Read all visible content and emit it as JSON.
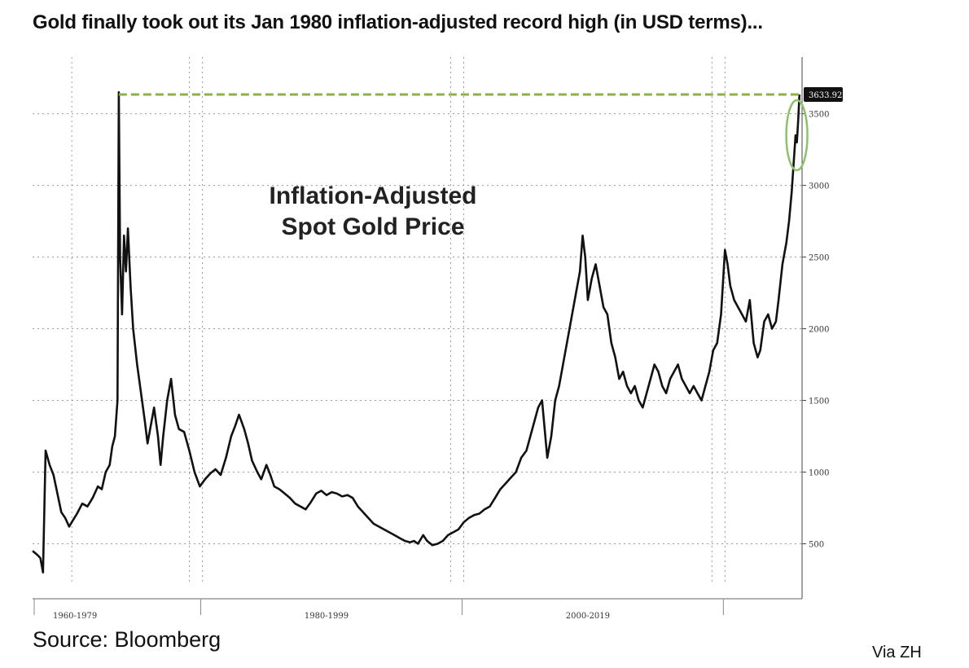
{
  "headline": "Gold finally took out its Jan 1980 inflation-adjusted record high (in USD terms)...",
  "source": "Source: Bloomberg",
  "credit": "Via ZH",
  "chart_data": {
    "type": "line",
    "title": "Inflation-Adjusted Spot Gold Price",
    "annotation_lines": [
      "Inflation-Adjusted",
      "Spot Gold Price"
    ],
    "xlim": [
      1967,
      2025.9
    ],
    "ylim": [
      230,
      3850
    ],
    "y_ticks": [
      500,
      1000,
      1500,
      2000,
      2500,
      3000,
      3500
    ],
    "x_ticks": [
      1970,
      1979,
      1980,
      1999,
      2000,
      2019,
      2020
    ],
    "x_group_labels": [
      {
        "label": "1960-1979",
        "start": 1967,
        "end": 1973.5
      },
      {
        "label": "1980-1999",
        "start": 1980,
        "end": 1999
      },
      {
        "label": "2000-2019",
        "start": 2000,
        "end": 2019
      }
    ],
    "last_value_label": "3633.92",
    "last_value": 3633.92,
    "record_high_line": {
      "value": 3633.92,
      "from_x": 1973.6,
      "to_x": 2025.7,
      "color": "#8bb24a"
    },
    "highlight_color": "#8dc26a",
    "line_color": "#111111",
    "series": [
      {
        "name": "Inflation-Adjusted Spot Gold Price",
        "points": [
          [
            1967.0,
            450
          ],
          [
            1967.4,
            420
          ],
          [
            1967.6,
            400
          ],
          [
            1967.8,
            300
          ],
          [
            1968.0,
            1150
          ],
          [
            1968.3,
            1050
          ],
          [
            1968.6,
            980
          ],
          [
            1968.9,
            850
          ],
          [
            1969.2,
            720
          ],
          [
            1969.5,
            680
          ],
          [
            1969.8,
            620
          ],
          [
            1970.0,
            650
          ],
          [
            1970.4,
            710
          ],
          [
            1970.8,
            780
          ],
          [
            1971.2,
            760
          ],
          [
            1971.6,
            820
          ],
          [
            1972.0,
            900
          ],
          [
            1972.3,
            880
          ],
          [
            1972.6,
            1000
          ],
          [
            1972.9,
            1050
          ],
          [
            1973.1,
            1180
          ],
          [
            1973.3,
            1250
          ],
          [
            1973.5,
            1500
          ],
          [
            1973.6,
            3650
          ],
          [
            1973.7,
            2500
          ],
          [
            1973.85,
            2100
          ],
          [
            1974.0,
            2650
          ],
          [
            1974.15,
            2400
          ],
          [
            1974.3,
            2700
          ],
          [
            1974.5,
            2300
          ],
          [
            1974.7,
            2000
          ],
          [
            1975.0,
            1750
          ],
          [
            1975.3,
            1550
          ],
          [
            1975.6,
            1350
          ],
          [
            1975.8,
            1200
          ],
          [
            1976.0,
            1300
          ],
          [
            1976.3,
            1450
          ],
          [
            1976.6,
            1250
          ],
          [
            1976.8,
            1050
          ],
          [
            1977.0,
            1250
          ],
          [
            1977.3,
            1500
          ],
          [
            1977.6,
            1650
          ],
          [
            1977.9,
            1400
          ],
          [
            1978.2,
            1300
          ],
          [
            1978.6,
            1280
          ],
          [
            1979.0,
            1150
          ],
          [
            1979.4,
            1000
          ],
          [
            1979.8,
            900
          ],
          [
            1980.2,
            950
          ],
          [
            1980.6,
            990
          ],
          [
            1981.0,
            1020
          ],
          [
            1981.4,
            980
          ],
          [
            1981.8,
            1100
          ],
          [
            1982.2,
            1250
          ],
          [
            1982.5,
            1320
          ],
          [
            1982.8,
            1400
          ],
          [
            1983.2,
            1300
          ],
          [
            1983.5,
            1200
          ],
          [
            1983.8,
            1080
          ],
          [
            1984.2,
            1000
          ],
          [
            1984.5,
            950
          ],
          [
            1984.9,
            1050
          ],
          [
            1985.2,
            980
          ],
          [
            1985.5,
            900
          ],
          [
            1985.9,
            880
          ],
          [
            1986.3,
            850
          ],
          [
            1986.7,
            820
          ],
          [
            1987.1,
            780
          ],
          [
            1987.5,
            760
          ],
          [
            1987.9,
            740
          ],
          [
            1988.3,
            790
          ],
          [
            1988.7,
            850
          ],
          [
            1989.1,
            870
          ],
          [
            1989.5,
            840
          ],
          [
            1989.9,
            860
          ],
          [
            1990.3,
            850
          ],
          [
            1990.7,
            830
          ],
          [
            1991.1,
            840
          ],
          [
            1991.5,
            820
          ],
          [
            1991.9,
            760
          ],
          [
            1992.3,
            720
          ],
          [
            1992.7,
            680
          ],
          [
            1993.1,
            640
          ],
          [
            1993.5,
            620
          ],
          [
            1993.9,
            600
          ],
          [
            1994.3,
            580
          ],
          [
            1994.7,
            560
          ],
          [
            1995.1,
            540
          ],
          [
            1995.5,
            520
          ],
          [
            1995.9,
            510
          ],
          [
            1996.2,
            520
          ],
          [
            1996.5,
            500
          ],
          [
            1996.9,
            560
          ],
          [
            1997.2,
            520
          ],
          [
            1997.6,
            490
          ],
          [
            1998.0,
            500
          ],
          [
            1998.4,
            520
          ],
          [
            1998.8,
            560
          ],
          [
            1999.2,
            580
          ],
          [
            1999.6,
            600
          ],
          [
            2000.0,
            650
          ],
          [
            2000.4,
            680
          ],
          [
            2000.8,
            700
          ],
          [
            2001.2,
            710
          ],
          [
            2001.6,
            740
          ],
          [
            2002.0,
            760
          ],
          [
            2002.4,
            820
          ],
          [
            2002.8,
            880
          ],
          [
            2003.2,
            920
          ],
          [
            2003.6,
            960
          ],
          [
            2004.0,
            1000
          ],
          [
            2004.4,
            1100
          ],
          [
            2004.8,
            1150
          ],
          [
            2005.1,
            1250
          ],
          [
            2005.4,
            1350
          ],
          [
            2005.7,
            1450
          ],
          [
            2006.0,
            1500
          ],
          [
            2006.2,
            1300
          ],
          [
            2006.4,
            1100
          ],
          [
            2006.7,
            1250
          ],
          [
            2007.0,
            1500
          ],
          [
            2007.3,
            1600
          ],
          [
            2007.7,
            1800
          ],
          [
            2008.0,
            1950
          ],
          [
            2008.3,
            2100
          ],
          [
            2008.6,
            2250
          ],
          [
            2008.9,
            2400
          ],
          [
            2009.1,
            2650
          ],
          [
            2009.3,
            2500
          ],
          [
            2009.5,
            2200
          ],
          [
            2009.8,
            2350
          ],
          [
            2010.1,
            2450
          ],
          [
            2010.4,
            2300
          ],
          [
            2010.7,
            2150
          ],
          [
            2011.0,
            2100
          ],
          [
            2011.3,
            1900
          ],
          [
            2011.6,
            1800
          ],
          [
            2011.9,
            1650
          ],
          [
            2012.2,
            1700
          ],
          [
            2012.5,
            1600
          ],
          [
            2012.8,
            1550
          ],
          [
            2013.1,
            1600
          ],
          [
            2013.4,
            1500
          ],
          [
            2013.7,
            1450
          ],
          [
            2014.0,
            1550
          ],
          [
            2014.3,
            1650
          ],
          [
            2014.6,
            1750
          ],
          [
            2014.9,
            1700
          ],
          [
            2015.2,
            1600
          ],
          [
            2015.5,
            1550
          ],
          [
            2015.8,
            1650
          ],
          [
            2016.1,
            1700
          ],
          [
            2016.4,
            1750
          ],
          [
            2016.7,
            1650
          ],
          [
            2017.0,
            1600
          ],
          [
            2017.3,
            1550
          ],
          [
            2017.6,
            1600
          ],
          [
            2017.9,
            1550
          ],
          [
            2018.2,
            1500
          ],
          [
            2018.5,
            1600
          ],
          [
            2018.8,
            1700
          ],
          [
            2019.1,
            1850
          ],
          [
            2019.4,
            1900
          ],
          [
            2019.7,
            2100
          ],
          [
            2019.9,
            2400
          ],
          [
            2020.0,
            2550
          ],
          [
            2020.2,
            2450
          ],
          [
            2020.4,
            2300
          ],
          [
            2020.7,
            2200
          ],
          [
            2021.0,
            2150
          ],
          [
            2021.3,
            2100
          ],
          [
            2021.6,
            2050
          ],
          [
            2021.9,
            2200
          ],
          [
            2022.2,
            1900
          ],
          [
            2022.5,
            1800
          ],
          [
            2022.7,
            1850
          ],
          [
            2023.0,
            2050
          ],
          [
            2023.3,
            2100
          ],
          [
            2023.6,
            2000
          ],
          [
            2023.9,
            2050
          ],
          [
            2024.1,
            2200
          ],
          [
            2024.4,
            2450
          ],
          [
            2024.7,
            2600
          ],
          [
            2024.9,
            2750
          ],
          [
            2025.1,
            2950
          ],
          [
            2025.25,
            3150
          ],
          [
            2025.4,
            3350
          ],
          [
            2025.5,
            3300
          ],
          [
            2025.6,
            3450
          ],
          [
            2025.7,
            3633.92
          ]
        ]
      }
    ]
  }
}
